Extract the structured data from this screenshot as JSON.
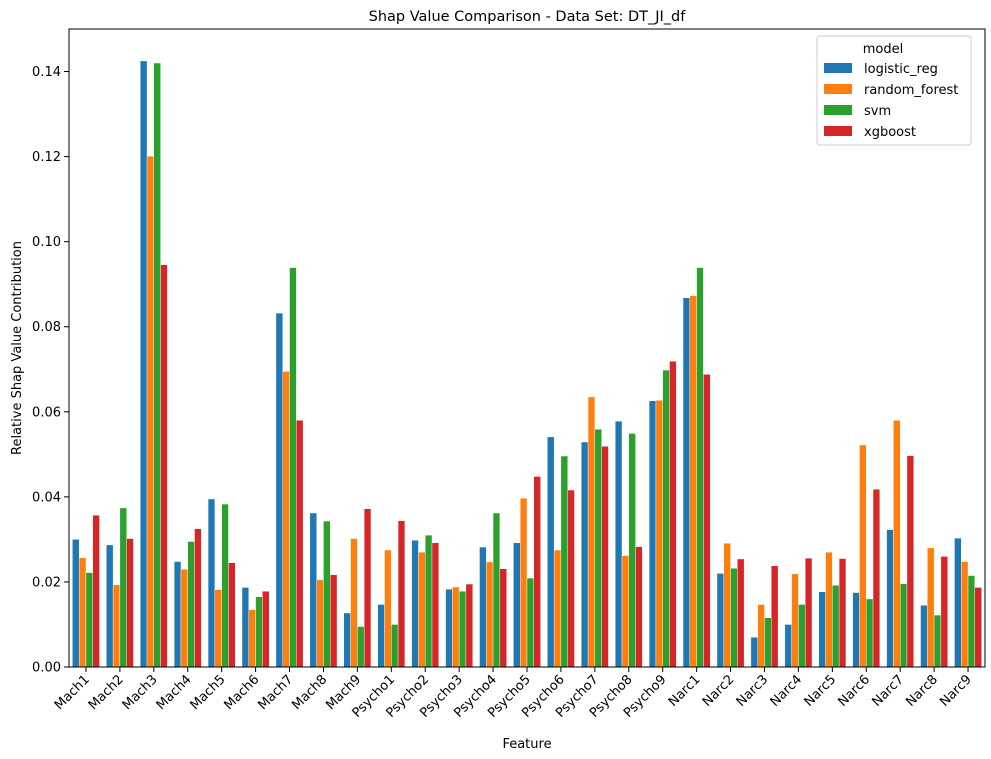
{
  "chart_data": {
    "type": "bar",
    "title": "Shap Value Comparison - Data Set: DT_JI_df",
    "xlabel": "Feature",
    "ylabel": "Relative Shap Value Contribution",
    "ylim": [
      0,
      0.15
    ],
    "yticks": [
      "0.00",
      "0.02",
      "0.04",
      "0.06",
      "0.08",
      "0.10",
      "0.12",
      "0.14"
    ],
    "grid": false,
    "legend_title": "model",
    "legend_position": "top-right",
    "categories": [
      "Mach1",
      "Mach2",
      "Mach3",
      "Mach4",
      "Mach5",
      "Mach6",
      "Mach7",
      "Mach8",
      "Mach9",
      "Psycho1",
      "Psycho2",
      "Psycho3",
      "Psycho4",
      "Psycho5",
      "Psycho6",
      "Psycho7",
      "Psycho8",
      "Psycho9",
      "Narc1",
      "Narc2",
      "Narc3",
      "Narc4",
      "Narc5",
      "Narc6",
      "Narc7",
      "Narc8",
      "Narc9"
    ],
    "series": [
      {
        "name": "logistic_reg",
        "color": "#1f77b4",
        "values": [
          0.03,
          0.0287,
          0.1425,
          0.0248,
          0.0395,
          0.0187,
          0.0832,
          0.0362,
          0.0127,
          0.0147,
          0.0298,
          0.0183,
          0.0282,
          0.0292,
          0.0541,
          0.0529,
          0.0578,
          0.0626,
          0.0868,
          0.022,
          0.007,
          0.01,
          0.0177,
          0.0175,
          0.0323,
          0.0145,
          0.0303
        ]
      },
      {
        "name": "random_forest",
        "color": "#ff7f0e",
        "values": [
          0.0257,
          0.0193,
          0.1201,
          0.023,
          0.0182,
          0.0135,
          0.0695,
          0.0205,
          0.0302,
          0.0275,
          0.027,
          0.0188,
          0.0247,
          0.0397,
          0.0275,
          0.0635,
          0.0262,
          0.0627,
          0.0873,
          0.0291,
          0.0147,
          0.0219,
          0.027,
          0.0522,
          0.058,
          0.028,
          0.0248
        ]
      },
      {
        "name": "svm",
        "color": "#2ca02c",
        "values": [
          0.0222,
          0.0374,
          0.142,
          0.0295,
          0.0383,
          0.0165,
          0.0939,
          0.0343,
          0.0095,
          0.01,
          0.031,
          0.0178,
          0.0362,
          0.0209,
          0.0496,
          0.0559,
          0.0549,
          0.0698,
          0.0939,
          0.0232,
          0.0116,
          0.0147,
          0.0192,
          0.016,
          0.0196,
          0.0122,
          0.0215
        ]
      },
      {
        "name": "xgboost",
        "color": "#d62728",
        "values": [
          0.0357,
          0.0302,
          0.0946,
          0.0325,
          0.0245,
          0.0178,
          0.058,
          0.0217,
          0.0372,
          0.0344,
          0.0292,
          0.0195,
          0.0231,
          0.0448,
          0.0416,
          0.0519,
          0.0283,
          0.0719,
          0.0688,
          0.0254,
          0.0238,
          0.0256,
          0.0255,
          0.0418,
          0.0497,
          0.026,
          0.0187
        ]
      }
    ]
  }
}
